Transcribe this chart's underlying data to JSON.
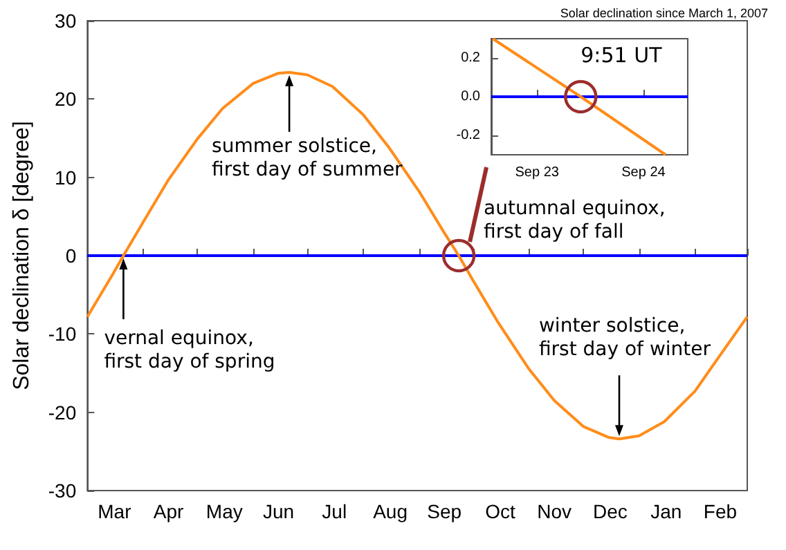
{
  "chart_data": [
    {
      "type": "line",
      "title": "Solar declination since March 1, 2007",
      "ylabel": "Solar declination δ [degree]",
      "x": [
        "2007-03-01",
        "2007-03-15",
        "2007-03-21",
        "2007-04-01",
        "2007-04-15",
        "2007-05-01",
        "2007-05-15",
        "2007-06-01",
        "2007-06-15",
        "2007-06-21",
        "2007-07-01",
        "2007-07-15",
        "2007-08-01",
        "2007-08-15",
        "2007-09-01",
        "2007-09-15",
        "2007-09-23",
        "2007-10-01",
        "2007-10-15",
        "2007-11-01",
        "2007-11-15",
        "2007-12-01",
        "2007-12-15",
        "2007-12-21",
        "2008-01-01",
        "2008-01-15",
        "2008-02-01",
        "2008-02-15",
        "2008-03-01"
      ],
      "series": [
        {
          "color": "#ff8c1a",
          "values": [
            -7.8,
            -2.4,
            0,
            4.3,
            9.7,
            14.9,
            18.8,
            22.0,
            23.3,
            23.4,
            23.1,
            21.6,
            18.0,
            13.9,
            8.2,
            2.9,
            0,
            -3.2,
            -8.6,
            -14.5,
            -18.5,
            -21.8,
            -23.2,
            -23.4,
            -23.0,
            -21.2,
            -17.3,
            -12.7,
            -7.8
          ]
        }
      ],
      "xlim": [
        "2007-03-01",
        "2008-03-01"
      ],
      "xticks": [
        {
          "value": "2007-03-01",
          "label": null
        },
        {
          "value": "2007-04-01",
          "label": null
        },
        {
          "value": "2007-05-01",
          "label": null
        },
        {
          "value": "2007-06-01",
          "label": null
        },
        {
          "value": "2007-07-01",
          "label": null
        },
        {
          "value": "2007-08-01",
          "label": null
        },
        {
          "value": "2007-09-01",
          "label": null
        },
        {
          "value": "2007-10-01",
          "label": null
        },
        {
          "value": "2007-11-01",
          "label": null
        },
        {
          "value": "2007-12-01",
          "label": null
        },
        {
          "value": "2008-01-01",
          "label": null
        },
        {
          "value": "2008-02-01",
          "label": null
        },
        {
          "value": "2008-03-01",
          "label": null
        },
        {
          "value": "2007-03-16",
          "label": "Mar"
        },
        {
          "value": "2007-04-15",
          "label": "Apr"
        },
        {
          "value": "2007-05-16",
          "label": "May"
        },
        {
          "value": "2007-06-15",
          "label": "Jun"
        },
        {
          "value": "2007-07-16",
          "label": "Jul"
        },
        {
          "value": "2007-08-16",
          "label": "Aug"
        },
        {
          "value": "2007-09-15",
          "label": "Sep"
        },
        {
          "value": "2007-10-16",
          "label": "Oct"
        },
        {
          "value": "2007-11-15",
          "label": "Nov"
        },
        {
          "value": "2007-12-16",
          "label": "Dec"
        },
        {
          "value": "2008-01-16",
          "label": "Jan"
        },
        {
          "value": "2008-02-15",
          "label": "Feb"
        }
      ],
      "ylim": [
        -30,
        30
      ],
      "yticks": [
        -30,
        -20,
        -10,
        0,
        10,
        20,
        30
      ],
      "ref_lines": [
        {
          "axis": "y",
          "value": 0,
          "color": "#0000ff"
        }
      ],
      "annotations": [
        {
          "text": "vernal equinox,\nfirst day of spring",
          "x": "2007-03-21",
          "y": 0
        },
        {
          "text": "summer solstice,\nfirst day of summer",
          "x": "2007-06-21",
          "y": 23.4
        },
        {
          "text": "autumnal equinox,\nfirst day of fall",
          "x": "2007-09-23",
          "y": 0
        },
        {
          "text": "winter solstice,\nfirst day of winter",
          "x": "2007-12-21",
          "y": -23.4
        }
      ]
    },
    {
      "type": "line",
      "x": [
        "2007-09-22T14:00",
        "2007-09-23T09:51",
        "2007-09-24T05:00"
      ],
      "series": [
        {
          "color": "#ff8c1a",
          "values": [
            0.3,
            0,
            -0.3
          ]
        }
      ],
      "xlim": [
        "2007-09-22T13:40",
        "2007-09-24T10:00"
      ],
      "xticks": [
        {
          "value": "2007-09-23",
          "label": "Sep 23"
        },
        {
          "value": "2007-09-24",
          "label": "Sep 24"
        }
      ],
      "ylim": [
        -0.3,
        0.3
      ],
      "yticks": [
        {
          "value": -0.2,
          "label": "-0.2"
        },
        {
          "value": 0,
          "label": "0.0"
        },
        {
          "value": 0.2,
          "label": "0.2"
        }
      ],
      "ref_lines": [
        {
          "axis": "y",
          "value": 0,
          "color": "#0000ff"
        }
      ],
      "annotations": [
        {
          "text": "9:51 UT",
          "x": "2007-09-23T09:51",
          "y": 0
        }
      ]
    }
  ]
}
